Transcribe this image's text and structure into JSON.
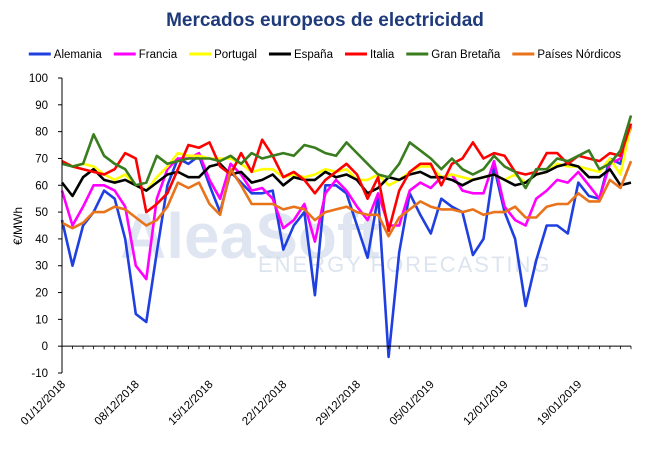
{
  "watermark": {
    "main": "AleaSoft",
    "sub": "ENERGY FORECASTING"
  },
  "chart_data": {
    "type": "line",
    "title": "Mercados europeos de electricidad",
    "xlabel": "",
    "ylabel": "€/MWh",
    "ylim": [
      -10,
      100
    ],
    "yticks": [
      -10,
      0,
      10,
      20,
      30,
      40,
      50,
      60,
      70,
      80,
      90,
      100
    ],
    "grid": "none",
    "legend_position": "top",
    "xtick_labels": [
      "01/12/2018",
      "08/12/2018",
      "15/12/2018",
      "22/12/2018",
      "29/12/2018",
      "05/01/2019",
      "12/01/2019",
      "19/01/2019"
    ],
    "x_start": "2018-12-01",
    "x_end": "2019-01-26",
    "series": [
      {
        "name": "Alemania",
        "color": "#1f3fe0",
        "values": [
          47,
          30,
          45,
          50,
          58,
          55,
          40,
          12,
          9,
          35,
          60,
          70,
          68,
          71,
          60,
          50,
          65,
          61,
          57,
          57,
          58,
          36,
          45,
          50,
          19,
          60,
          60,
          57,
          45,
          33,
          56,
          -4,
          35,
          57,
          49,
          42,
          55,
          52,
          50,
          34,
          40,
          67,
          50,
          40,
          15,
          32,
          45,
          45,
          42,
          61,
          56,
          55,
          70,
          68,
          82
        ]
      },
      {
        "name": "Francia",
        "color": "#ff00ff",
        "values": [
          58,
          45,
          52,
          60,
          60,
          58,
          52,
          30,
          25,
          55,
          66,
          70,
          70,
          72,
          62,
          55,
          68,
          64,
          58,
          59,
          55,
          44,
          47,
          53,
          39,
          57,
          62,
          58,
          52,
          47,
          57,
          45,
          45,
          58,
          61,
          59,
          63,
          64,
          58,
          57,
          57,
          69,
          52,
          47,
          45,
          55,
          58,
          62,
          61,
          65,
          60,
          55,
          68,
          70,
          82
        ]
      },
      {
        "name": "Portugal",
        "color": "#ffff00",
        "values": [
          69,
          67,
          68,
          67,
          64,
          62,
          64,
          60,
          58,
          63,
          67,
          72,
          71,
          71,
          70,
          70,
          70,
          68,
          65,
          66,
          66,
          63,
          64,
          63,
          64,
          66,
          65,
          66,
          62,
          62,
          64,
          60,
          62,
          65,
          67,
          67,
          63,
          64,
          63,
          62,
          63,
          64,
          62,
          64,
          61,
          64,
          65,
          68,
          67,
          67,
          66,
          65,
          70,
          64,
          83
        ]
      },
      {
        "name": "España",
        "color": "#000000",
        "values": [
          61,
          56,
          63,
          66,
          62,
          61,
          62,
          60,
          58,
          61,
          64,
          65,
          63,
          63,
          67,
          68,
          64,
          65,
          61,
          62,
          64,
          60,
          63,
          62,
          62,
          65,
          63,
          64,
          62,
          57,
          59,
          63,
          62,
          64,
          65,
          63,
          63,
          62,
          60,
          62,
          63,
          64,
          62,
          60,
          61,
          64,
          65,
          67,
          68,
          67,
          63,
          63,
          66,
          60,
          61
        ]
      },
      {
        "name": "Italia",
        "color": "#ff0000",
        "values": [
          69,
          67,
          66,
          65,
          64,
          66,
          72,
          70,
          50,
          53,
          57,
          66,
          75,
          74,
          76,
          67,
          64,
          72,
          65,
          77,
          71,
          63,
          65,
          62,
          57,
          62,
          65,
          68,
          64,
          55,
          63,
          43,
          58,
          65,
          68,
          68,
          60,
          68,
          70,
          76,
          70,
          72,
          71,
          65,
          64,
          65,
          72,
          72,
          68,
          71,
          70,
          69,
          72,
          71,
          83
        ]
      },
      {
        "name": "Gran Bretaña",
        "color": "#3a7d1e",
        "values": [
          68,
          67,
          68,
          79,
          71,
          68,
          66,
          60,
          61,
          71,
          68,
          69,
          70,
          70,
          70,
          69,
          71,
          68,
          72,
          70,
          71,
          72,
          71,
          75,
          74,
          72,
          71,
          76,
          72,
          68,
          64,
          63,
          68,
          76,
          73,
          70,
          66,
          70,
          66,
          64,
          66,
          71,
          67,
          65,
          59,
          66,
          66,
          70,
          69,
          71,
          73,
          66,
          68,
          73,
          86
        ]
      },
      {
        "name": "Países Nórdicos",
        "color": "#e8731a",
        "values": [
          46,
          44,
          46,
          50,
          50,
          52,
          51,
          48,
          45,
          47,
          52,
          61,
          59,
          61,
          53,
          49,
          66,
          60,
          53,
          53,
          53,
          51,
          52,
          51,
          47,
          50,
          51,
          52,
          50,
          49,
          49,
          41,
          48,
          51,
          54,
          52,
          51,
          51,
          50,
          51,
          49,
          50,
          50,
          52,
          48,
          48,
          52,
          53,
          53,
          57,
          54,
          54,
          62,
          59,
          69
        ]
      }
    ]
  }
}
